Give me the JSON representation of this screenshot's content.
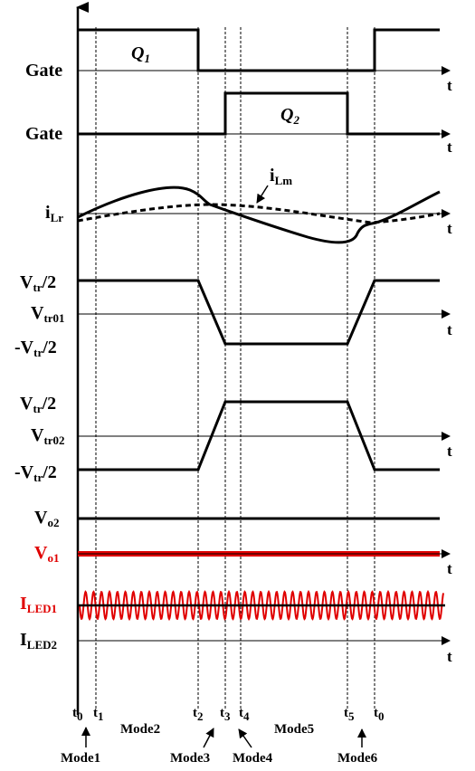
{
  "signals": {
    "gate1": "Gate",
    "gate2": "Gate",
    "q1": "Q",
    "q1_sub": "1",
    "q2": "Q",
    "q2_sub": "2",
    "ilr": "i",
    "ilr_sub": "Lr",
    "ilm": "i",
    "ilm_sub": "Lm",
    "vtr_half_1": "V",
    "vtr_half_1_sub": "tr",
    "vtr_half_1_suf": "/2",
    "vtr01": "V",
    "vtr01_sub": "tr01",
    "neg_vtr_half_1": "-V",
    "neg_vtr_half_1_sub": "tr",
    "neg_vtr_half_1_suf": "/2",
    "vtr_half_2": "V",
    "vtr_half_2_sub": "tr",
    "vtr_half_2_suf": "/2",
    "vtr02": "V",
    "vtr02_sub": "tr02",
    "neg_vtr_half_2": "-V",
    "neg_vtr_half_2_sub": "tr",
    "neg_vtr_half_2_suf": "/2",
    "vo2": "V",
    "vo2_sub": "o2",
    "vo1": "V",
    "vo1_sub": "o1",
    "iled1": "I",
    "iled1_sub": "LED1",
    "iled2": "I",
    "iled2_sub": "LED2"
  },
  "time_axis_label": "t",
  "ticks": {
    "t0a": "t",
    "t0a_sub": "0",
    "t1": "t",
    "t1_sub": "1",
    "t2": "t",
    "t2_sub": "2",
    "t3": "t",
    "t3_sub": "3",
    "t4": "t",
    "t4_sub": "4",
    "t5": "t",
    "t5_sub": "5",
    "t0b": "t",
    "t0b_sub": "0"
  },
  "modes": {
    "m1": "Mode1",
    "m2": "Mode2",
    "m3": "Mode3",
    "m4": "Mode4",
    "m5": "Mode5",
    "m6": "Mode6"
  },
  "colors": {
    "trace": "#000000",
    "highlight": "#e00000"
  }
}
